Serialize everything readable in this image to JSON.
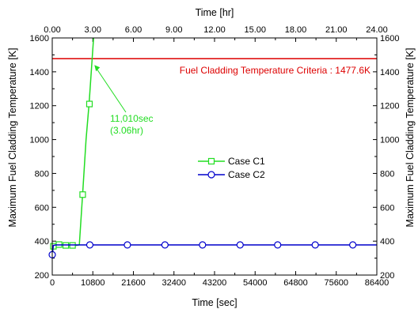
{
  "chart_data": {
    "type": "line",
    "xlabel": "Time [sec]",
    "x2label": "Time [hr]",
    "ylabel": "Maximum Fuel Cladding Temperature [K]",
    "y2label": "Maximum Fuel Cladding Temperature [K]",
    "xlim": [
      0,
      86400
    ],
    "ylim": [
      200,
      1600
    ],
    "x2lim": [
      0,
      24
    ],
    "xticks": [
      0,
      10800,
      21600,
      32400,
      43200,
      54000,
      64800,
      75600,
      86400
    ],
    "x2ticks": [
      "0.00",
      "3.00",
      "6.00",
      "9.00",
      "12.00",
      "15.00",
      "18.00",
      "21.00",
      "24.00"
    ],
    "yticks": [
      200,
      400,
      600,
      800,
      1000,
      1200,
      1400,
      1600
    ],
    "series": [
      {
        "name": "Case C1",
        "color": "#22dd22",
        "marker": "square",
        "x": [
          0,
          300,
          800,
          1800,
          4200,
          6300,
          7200,
          8100,
          9000,
          9800,
          11010
        ],
        "y": [
          320,
          370,
          378,
          380,
          375,
          375,
          378,
          680,
          1000,
          1210,
          1600
        ],
        "marker_x": [
          300,
          1800,
          3600,
          5400,
          8100,
          9900
        ],
        "marker_y": [
          370,
          380,
          375,
          375,
          675,
          1210
        ]
      },
      {
        "name": "Case C2",
        "color": "#0000cc",
        "marker": "circle",
        "x": [
          0,
          300,
          1000,
          10000,
          20000,
          30000,
          40000,
          50000,
          60000,
          70000,
          80000,
          86400
        ],
        "y": [
          320,
          375,
          378,
          378,
          378,
          378,
          378,
          378,
          378,
          378,
          378,
          378
        ],
        "marker_x": [
          0,
          10000,
          20000,
          30000,
          40000,
          50000,
          60000,
          70000,
          80000
        ],
        "marker_y": [
          320,
          378,
          378,
          378,
          378,
          378,
          378,
          378,
          378
        ]
      }
    ],
    "reference_line": {
      "y": 1477.6,
      "color": "#dd0000",
      "label": "Fuel Cladding Temperature Criteria : 1477.6K"
    },
    "annotation": {
      "lines": [
        "11,010sec",
        "(3.06hr)"
      ],
      "target_x": 11010,
      "target_y": 1445,
      "color": "#22dd22"
    },
    "legend_position": "center",
    "grid": false
  }
}
